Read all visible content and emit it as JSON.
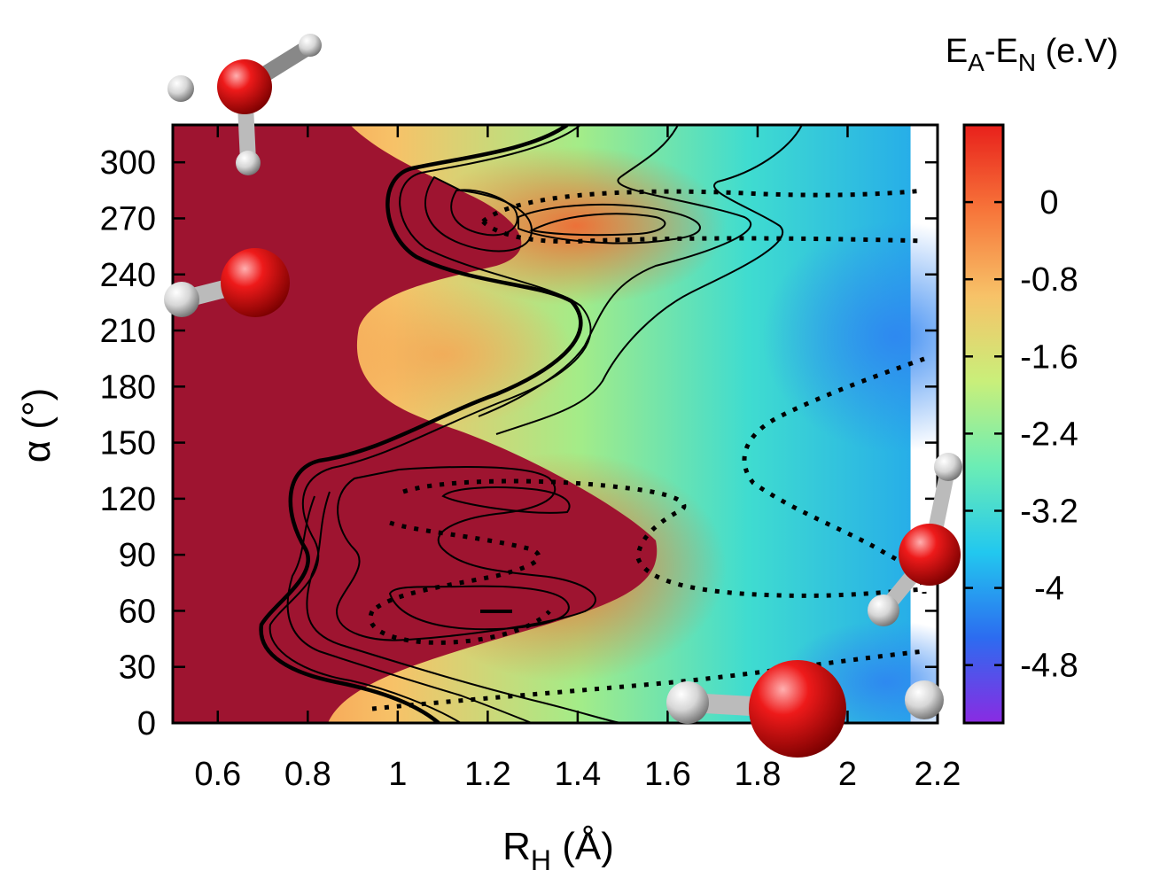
{
  "chart_data": {
    "type": "heatmap",
    "title": "",
    "xlabel": {
      "main": "R",
      "sub": "H",
      "rest": " (Å)"
    },
    "ylabel": "α (°)",
    "xlim": [
      0.5,
      2.2
    ],
    "ylim": [
      0,
      320
    ],
    "x_ticks": [
      "0.6",
      "0.8",
      "1",
      "1.2",
      "1.4",
      "1.6",
      "1.8",
      "2",
      "2.2"
    ],
    "y_ticks": [
      "0",
      "30",
      "60",
      "90",
      "120",
      "150",
      "180",
      "210",
      "240",
      "270",
      "300"
    ],
    "x_tick_values": [
      0.6,
      0.8,
      1.0,
      1.2,
      1.4,
      1.6,
      1.8,
      2.0,
      2.2
    ],
    "y_tick_values": [
      0,
      30,
      60,
      90,
      120,
      150,
      180,
      210,
      240,
      270,
      300
    ],
    "data_x_max": 2.14,
    "colorbar": {
      "title": {
        "e1": "E",
        "s1": "A",
        "mid": "-E",
        "s2": "N",
        "rest": " (e.V)"
      },
      "range": [
        -5.4,
        0.8
      ],
      "ticks": [
        "0",
        "-0.8",
        "-1.6",
        "-2.4",
        "-3.2",
        "-4",
        "-4.8"
      ],
      "tick_values": [
        0,
        -0.8,
        -1.6,
        -2.4,
        -3.2,
        -4.0,
        -4.8
      ],
      "colors": [
        "#8a2be2",
        "#2c6cf0",
        "#22c8ef",
        "#6bedb5",
        "#c9ef7a",
        "#f7c268",
        "#f7753a",
        "#e8201b"
      ]
    },
    "saturated_region_color": "#9e1430",
    "grid": false,
    "molecules": [
      "water-top-left",
      "hydroxyl-left",
      "water-right",
      "hydroxyl-bottom"
    ]
  }
}
